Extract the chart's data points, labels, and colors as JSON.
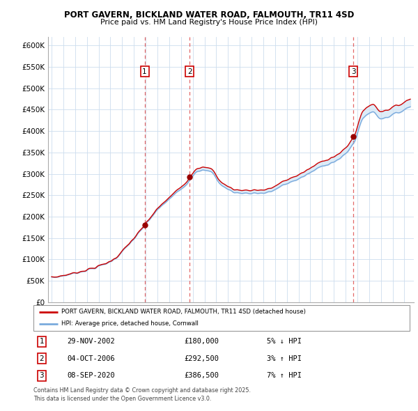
{
  "title": "PORT GAVERN, BICKLAND WATER ROAD, FALMOUTH, TR11 4SD",
  "subtitle": "Price paid vs. HM Land Registry's House Price Index (HPI)",
  "ylim": [
    0,
    620000
  ],
  "yticks": [
    0,
    50000,
    100000,
    150000,
    200000,
    250000,
    300000,
    350000,
    400000,
    450000,
    500000,
    550000,
    600000
  ],
  "ytick_labels": [
    "£0",
    "£50K",
    "£100K",
    "£150K",
    "£200K",
    "£250K",
    "£300K",
    "£350K",
    "£400K",
    "£450K",
    "£500K",
    "£550K",
    "£600K"
  ],
  "xlim_start": 1994.7,
  "xlim_end": 2025.8,
  "xticks": [
    1995,
    1996,
    1997,
    1998,
    1999,
    2000,
    2001,
    2002,
    2003,
    2004,
    2005,
    2006,
    2007,
    2008,
    2009,
    2010,
    2011,
    2012,
    2013,
    2014,
    2015,
    2016,
    2017,
    2018,
    2019,
    2020,
    2021,
    2022,
    2023,
    2024,
    2025
  ],
  "sales": [
    {
      "num": 1,
      "date": "29-NOV-2002",
      "year": 2002.91,
      "price": 180000,
      "pct": "5%",
      "dir": "↓"
    },
    {
      "num": 2,
      "date": "04-OCT-2006",
      "year": 2006.75,
      "price": 292500,
      "pct": "3%",
      "dir": "↑"
    },
    {
      "num": 3,
      "date": "08-SEP-2020",
      "year": 2020.67,
      "price": 386500,
      "pct": "7%",
      "dir": "↑"
    }
  ],
  "line_color_red": "#cc0000",
  "line_color_blue": "#7aaadd",
  "fill_color": "#d0e4f5",
  "vline_color": "#dd4444",
  "legend_label_red": "PORT GAVERN, BICKLAND WATER ROAD, FALMOUTH, TR11 4SD (detached house)",
  "legend_label_blue": "HPI: Average price, detached house, Cornwall",
  "footer": "Contains HM Land Registry data © Crown copyright and database right 2025.\nThis data is licensed under the Open Government Licence v3.0.",
  "table_rows": [
    [
      "1",
      "29-NOV-2002",
      "£180,000",
      "5% ↓ HPI"
    ],
    [
      "2",
      "04-OCT-2006",
      "£292,500",
      "3% ↑ HPI"
    ],
    [
      "3",
      "08-SEP-2020",
      "£386,500",
      "7% ↑ HPI"
    ]
  ]
}
